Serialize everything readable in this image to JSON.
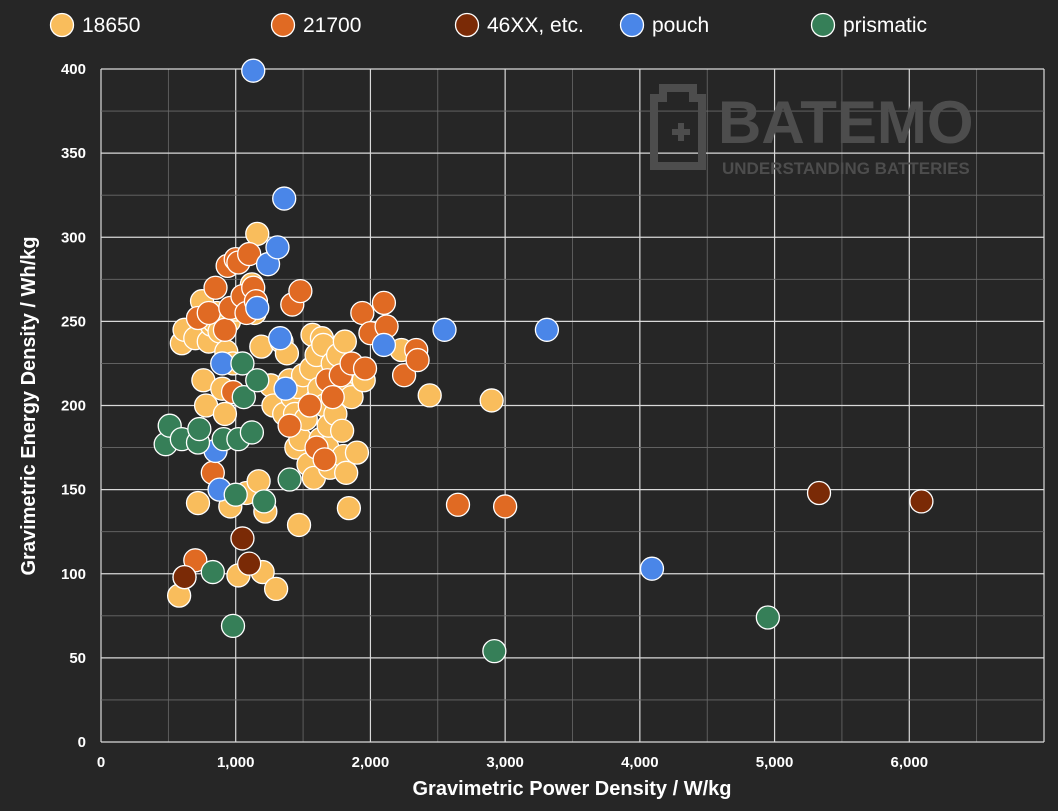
{
  "chart_data": {
    "type": "scatter",
    "xlabel": "Gravimetric Power Density / W/kg",
    "ylabel": "Gravimetric Energy Density / Wh/kg",
    "xlim": [
      0,
      7000
    ],
    "ylim": [
      0,
      400
    ],
    "x_ticks": [
      0,
      1000,
      2000,
      3000,
      4000,
      5000,
      6000
    ],
    "x_tick_labels": [
      "0",
      "1,000",
      "2,000",
      "3,000",
      "4,000",
      "5,000",
      "6,000"
    ],
    "y_ticks": [
      0,
      50,
      100,
      150,
      200,
      250,
      300,
      350,
      400
    ],
    "y_tick_labels": [
      "0",
      "50",
      "100",
      "150",
      "200",
      "250",
      "300",
      "350",
      "400"
    ],
    "grid": true,
    "legend_position": "top",
    "watermark": {
      "brand": "BATEMO",
      "tagline": "UNDERSTANDING BATTERIES"
    },
    "series": [
      {
        "name": "18650",
        "color": "#f9bd5c",
        "points": [
          [
            580,
            87
          ],
          [
            600,
            237
          ],
          [
            620,
            245
          ],
          [
            700,
            240
          ],
          [
            720,
            142
          ],
          [
            750,
            262
          ],
          [
            760,
            215
          ],
          [
            780,
            200
          ],
          [
            800,
            238
          ],
          [
            820,
            248
          ],
          [
            840,
            250
          ],
          [
            860,
            255
          ],
          [
            880,
            244
          ],
          [
            900,
            210
          ],
          [
            920,
            195
          ],
          [
            930,
            232
          ],
          [
            950,
            250
          ],
          [
            960,
            140
          ],
          [
            980,
            225
          ],
          [
            1000,
            257
          ],
          [
            1020,
            99
          ],
          [
            1050,
            260
          ],
          [
            1080,
            148
          ],
          [
            1100,
            257
          ],
          [
            1120,
            272
          ],
          [
            1140,
            255
          ],
          [
            1160,
            302
          ],
          [
            1170,
            155
          ],
          [
            1190,
            235
          ],
          [
            1200,
            101
          ],
          [
            1220,
            137
          ],
          [
            1260,
            212
          ],
          [
            1280,
            200
          ],
          [
            1300,
            91
          ],
          [
            1340,
            238
          ],
          [
            1360,
            195
          ],
          [
            1380,
            231
          ],
          [
            1400,
            215
          ],
          [
            1420,
            205
          ],
          [
            1440,
            195
          ],
          [
            1450,
            175
          ],
          [
            1460,
            211
          ],
          [
            1470,
            129
          ],
          [
            1480,
            180
          ],
          [
            1500,
            218
          ],
          [
            1520,
            192
          ],
          [
            1540,
            165
          ],
          [
            1560,
            222
          ],
          [
            1570,
            242
          ],
          [
            1580,
            157
          ],
          [
            1600,
            230
          ],
          [
            1620,
            210
          ],
          [
            1630,
            180
          ],
          [
            1640,
            240
          ],
          [
            1650,
            236
          ],
          [
            1660,
            200
          ],
          [
            1680,
            175
          ],
          [
            1690,
            188
          ],
          [
            1700,
            163
          ],
          [
            1720,
            225
          ],
          [
            1740,
            195
          ],
          [
            1760,
            230
          ],
          [
            1780,
            212
          ],
          [
            1790,
            185
          ],
          [
            1800,
            170
          ],
          [
            1810,
            238
          ],
          [
            1820,
            160
          ],
          [
            1840,
            139
          ],
          [
            1860,
            205
          ],
          [
            1880,
            220
          ],
          [
            1900,
            172
          ],
          [
            1950,
            215
          ],
          [
            2230,
            233
          ],
          [
            2440,
            206
          ],
          [
            2900,
            203
          ]
        ]
      },
      {
        "name": "21700",
        "color": "#e06a23",
        "points": [
          [
            620,
            98
          ],
          [
            700,
            108
          ],
          [
            720,
            252
          ],
          [
            800,
            255
          ],
          [
            830,
            160
          ],
          [
            850,
            270
          ],
          [
            920,
            245
          ],
          [
            940,
            283
          ],
          [
            960,
            258
          ],
          [
            980,
            208
          ],
          [
            1000,
            287
          ],
          [
            1020,
            285
          ],
          [
            1050,
            265
          ],
          [
            1080,
            255
          ],
          [
            1100,
            290
          ],
          [
            1130,
            270
          ],
          [
            1150,
            262
          ],
          [
            1400,
            188
          ],
          [
            1420,
            260
          ],
          [
            1480,
            268
          ],
          [
            1550,
            200
          ],
          [
            1600,
            175
          ],
          [
            1660,
            168
          ],
          [
            1680,
            215
          ],
          [
            1720,
            205
          ],
          [
            1780,
            218
          ],
          [
            1860,
            225
          ],
          [
            1940,
            255
          ],
          [
            1960,
            222
          ],
          [
            2000,
            243
          ],
          [
            2100,
            261
          ],
          [
            2120,
            247
          ],
          [
            2250,
            218
          ],
          [
            2340,
            233
          ],
          [
            2350,
            227
          ],
          [
            2650,
            141
          ],
          [
            3000,
            140
          ]
        ]
      },
      {
        "name": "46XX, etc.",
        "color": "#7a2a06",
        "points": [
          [
            620,
            98
          ],
          [
            1050,
            121
          ],
          [
            1100,
            106
          ],
          [
            5330,
            148
          ],
          [
            6090,
            143
          ]
        ]
      },
      {
        "name": "pouch",
        "color": "#4a86e8",
        "points": [
          [
            850,
            173
          ],
          [
            880,
            150
          ],
          [
            900,
            225
          ],
          [
            1130,
            399
          ],
          [
            1160,
            258
          ],
          [
            1240,
            284
          ],
          [
            1310,
            294
          ],
          [
            1330,
            240
          ],
          [
            1360,
            323
          ],
          [
            1370,
            210
          ],
          [
            2100,
            236
          ],
          [
            2550,
            245
          ],
          [
            3310,
            245
          ],
          [
            4090,
            103
          ]
        ]
      },
      {
        "name": "prismatic",
        "color": "#367f58",
        "points": [
          [
            480,
            177
          ],
          [
            510,
            188
          ],
          [
            600,
            180
          ],
          [
            720,
            178
          ],
          [
            730,
            186
          ],
          [
            830,
            101
          ],
          [
            910,
            180
          ],
          [
            980,
            69
          ],
          [
            1000,
            147
          ],
          [
            1020,
            180
          ],
          [
            1050,
            225
          ],
          [
            1060,
            205
          ],
          [
            1120,
            184
          ],
          [
            1160,
            215
          ],
          [
            1210,
            143
          ],
          [
            1400,
            156
          ],
          [
            2920,
            54
          ],
          [
            4950,
            74
          ]
        ]
      }
    ]
  }
}
